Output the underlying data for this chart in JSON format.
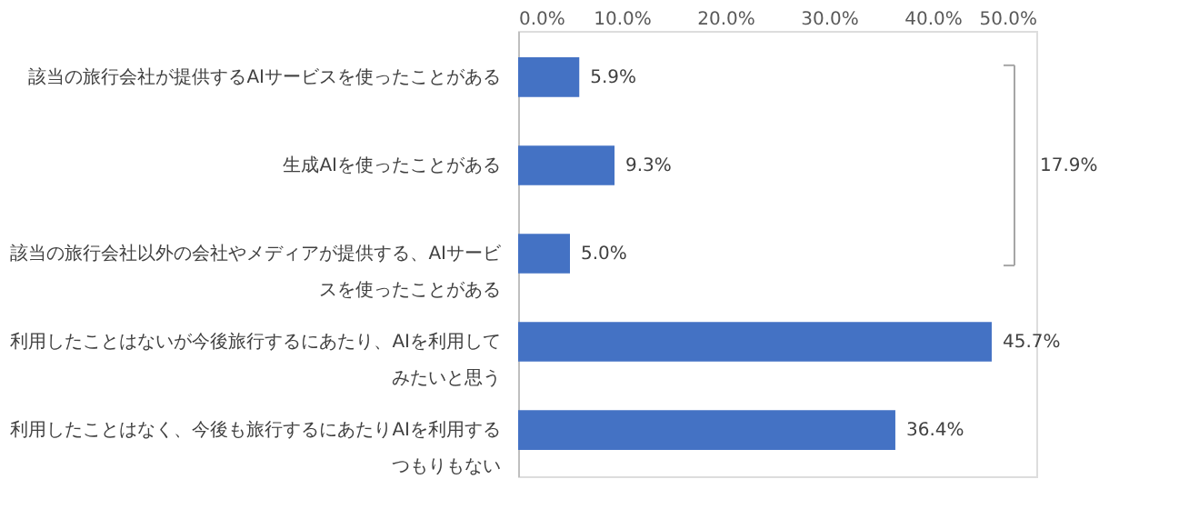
{
  "chart_data": {
    "type": "bar",
    "orientation": "horizontal",
    "categories": [
      "該当の旅行会社が提供するAIサービスを使ったことがある",
      "生成AIを使ったことがある",
      "該当の旅行会社以外の会社やメディアが提供する、AIサービスを使ったことがある",
      "利用したことはないが今後旅行するにあたり、AIを利用してみたいと思う",
      "利用したことはなく、今後も旅行するにあたりAIを利用するつもりもない"
    ],
    "values": [
      5.9,
      9.3,
      5.0,
      45.7,
      36.4
    ],
    "value_labels": [
      "5.9%",
      "9.3%",
      "5.0%",
      "45.7%",
      "36.4%"
    ],
    "color": "#4472c4",
    "xlim": [
      0,
      50
    ],
    "xticks": [
      {
        "value": 0,
        "label": "0.0%"
      },
      {
        "value": 10,
        "label": "10.0%"
      },
      {
        "value": 20,
        "label": "20.0%"
      },
      {
        "value": 30,
        "label": "30.0%"
      },
      {
        "value": 40,
        "label": "40.0%"
      },
      {
        "value": 50,
        "label": "50.0%"
      }
    ],
    "grid": false,
    "annotations": [
      "17.9%"
    ]
  }
}
